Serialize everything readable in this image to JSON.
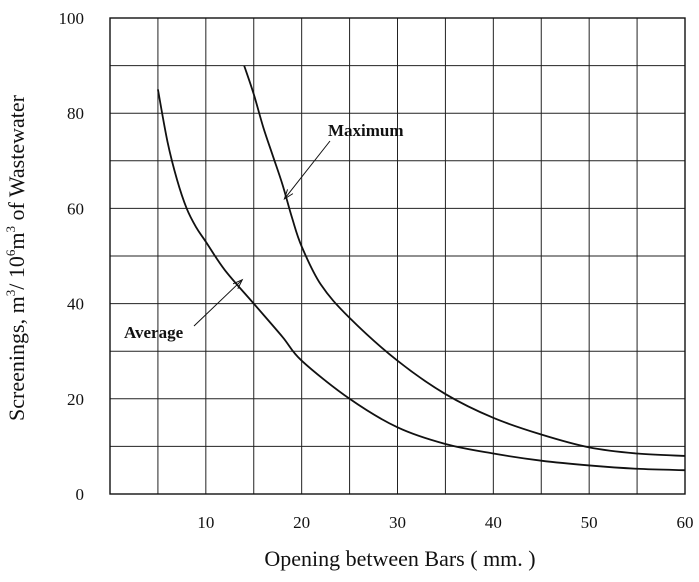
{
  "chart_data": {
    "type": "line",
    "title": "",
    "xlabel": "Opening between Bars ( mm. )",
    "ylabel_parts": {
      "prefix": "Screenings, m",
      "sup1": "3",
      "mid1": "/ 10",
      "sup2": "6",
      "mid2": "m",
      "sup3": "3",
      "suffix": " of Wastewater"
    },
    "xlim": [
      0,
      60
    ],
    "ylim": [
      0,
      100
    ],
    "x_ticks": [
      10,
      20,
      30,
      40,
      50,
      60
    ],
    "y_ticks": [
      0,
      20,
      40,
      60,
      80,
      100
    ],
    "x_grid": [
      0,
      5,
      10,
      15,
      20,
      25,
      30,
      35,
      40,
      45,
      50,
      55,
      60
    ],
    "y_grid": [
      0,
      10,
      20,
      30,
      40,
      50,
      60,
      70,
      80,
      90,
      100
    ],
    "grid": true,
    "series": [
      {
        "name": "Maximum",
        "x": [
          14,
          15,
          16,
          17,
          18,
          19,
          20,
          22,
          25,
          30,
          35,
          40,
          45,
          50,
          55,
          60
        ],
        "y": [
          90,
          84,
          77,
          71,
          65,
          58,
          52,
          44,
          37,
          28,
          21,
          16,
          12.5,
          9.8,
          8.5,
          8
        ]
      },
      {
        "name": "Average",
        "x": [
          5,
          6,
          7,
          8,
          9,
          10,
          12,
          15,
          18,
          20,
          25,
          30,
          35,
          40,
          45,
          50,
          55,
          60
        ],
        "y": [
          85,
          74,
          66,
          60,
          56,
          53,
          47,
          40,
          33,
          28,
          20,
          14,
          10.5,
          8.5,
          7,
          6,
          5.3,
          5
        ]
      }
    ],
    "annotations": [
      {
        "text": "Maximum",
        "series": "Maximum",
        "arrow_to": [
          18.2,
          62
        ]
      },
      {
        "text": "Average",
        "series": "Average",
        "arrow_to": [
          13.8,
          45
        ]
      }
    ]
  }
}
